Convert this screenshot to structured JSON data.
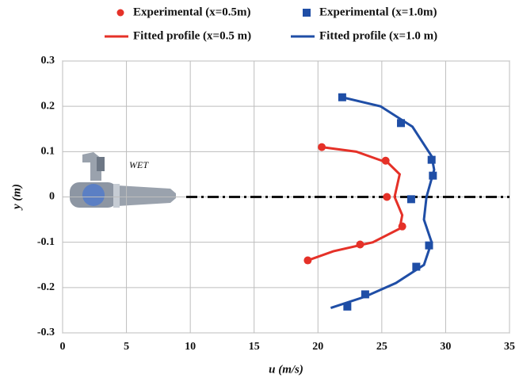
{
  "chart_data": {
    "type": "scatter",
    "xlabel": "u (m/s)",
    "ylabel": "y (m)",
    "annotation": "WET",
    "xlim": [
      0,
      35
    ],
    "xticks": [
      0,
      5,
      10,
      15,
      20,
      25,
      30,
      35
    ],
    "ylim": [
      -0.3,
      0.3
    ],
    "yticks": [
      0.3,
      0.2,
      0.1,
      0,
      -0.1,
      -0.2,
      -0.3
    ],
    "grid": true,
    "legend": "top",
    "series": [
      {
        "name": "Experimental (x=0.5m)",
        "color": "#e53128",
        "marker": "circle",
        "x": [
          20.3,
          25.3,
          25.4,
          26.6,
          23.3,
          19.2
        ],
        "y": [
          0.11,
          0.08,
          0,
          -0.065,
          -0.105,
          -0.14
        ]
      },
      {
        "name": "Experimental (x=1.0m)",
        "color": "#1f4ea6",
        "marker": "square",
        "x": [
          21.9,
          26.5,
          28.9,
          29.0,
          27.3,
          28.7,
          27.7,
          23.7,
          22.3
        ],
        "y": [
          0.22,
          0.163,
          0.082,
          0.047,
          -0.005,
          -0.107,
          -0.154,
          -0.215,
          -0.242
        ]
      },
      {
        "name": "Fitted profile (x=0.5 m)",
        "color": "#e53128",
        "marker": "line",
        "x": [
          20.3,
          23.0,
          25.5,
          26.4,
          26.0,
          26.6,
          26.4,
          24.3,
          21.2,
          19.2
        ],
        "y": [
          0.11,
          0.1,
          0.075,
          0.05,
          0,
          -0.04,
          -0.07,
          -0.1,
          -0.12,
          -0.14
        ]
      },
      {
        "name": "Fitted profile (x=1.0 m)",
        "color": "#1f4ea6",
        "marker": "line",
        "x": [
          21.9,
          24.9,
          27.4,
          28.9,
          29.1,
          28.5,
          28.3,
          28.9,
          28.3,
          26.1,
          23.7,
          21.0
        ],
        "y": [
          0.22,
          0.2,
          0.155,
          0.09,
          0.06,
          0,
          -0.05,
          -0.1,
          -0.15,
          -0.19,
          -0.22,
          -0.245
        ]
      }
    ]
  }
}
